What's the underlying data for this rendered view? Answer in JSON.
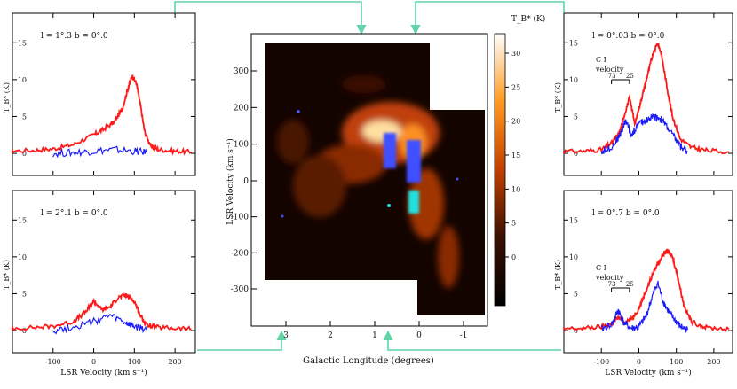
{
  "central_map": {
    "xlabel": "Galactic Longitude (degrees)",
    "ylabel": "LSR Velocity (km s⁻¹)",
    "colorbar_label": "T_B* (K)",
    "x_ticks": [
      "3",
      "2",
      "1",
      "0",
      "-1"
    ],
    "y_ticks": [
      "300",
      "200",
      "100",
      "0",
      "-100",
      "-200",
      "-300"
    ],
    "cbar_ticks": [
      "30",
      "25",
      "20",
      "15",
      "10",
      "5",
      "0"
    ]
  },
  "chart_data": [
    {
      "type": "line",
      "panel": "top-left",
      "title": "l = 1°.3  b = 0°.0",
      "xlabel": "",
      "ylabel": "T_B* (K)",
      "xlim": [
        -200,
        250
      ],
      "ylim": [
        -3,
        19
      ],
      "x_ticks": [
        "-100",
        "0",
        "100",
        "200"
      ],
      "y_ticks": [
        "0",
        "5",
        "10",
        "15"
      ],
      "series": [
        {
          "color": "#ff1a1a",
          "x": [
            -230,
            -150,
            -100,
            -50,
            0,
            25,
            50,
            70,
            85,
            95,
            105,
            115,
            125,
            140,
            160,
            200,
            240
          ],
          "y": [
            0.3,
            0.4,
            0.6,
            1.2,
            2.5,
            3.3,
            4.2,
            6.0,
            9.0,
            10.5,
            9.5,
            6.5,
            3.0,
            1.0,
            0.5,
            0.3,
            0.2
          ]
        },
        {
          "color": "#1a1aff",
          "x": [
            -100,
            -50,
            0,
            50,
            100,
            130
          ],
          "y": [
            0.0,
            0.1,
            0.3,
            0.5,
            0.3,
            0.1
          ]
        }
      ]
    },
    {
      "type": "line",
      "panel": "bottom-left",
      "title": "l = 2°.1   b = 0°.0",
      "xlabel": "LSR Velocity (km s⁻¹)",
      "ylabel": "T_B* (K)",
      "xlim": [
        -200,
        250
      ],
      "ylim": [
        -3,
        19
      ],
      "x_ticks": [
        "-100",
        "0",
        "100",
        "200"
      ],
      "y_ticks": [
        "0",
        "5",
        "10",
        "15"
      ],
      "series": [
        {
          "color": "#ff1a1a",
          "x": [
            -230,
            -150,
            -100,
            -50,
            -20,
            0,
            20,
            40,
            60,
            80,
            100,
            115,
            130,
            160,
            200,
            240
          ],
          "y": [
            0.3,
            0.4,
            0.6,
            1.2,
            2.5,
            4.0,
            2.8,
            3.2,
            4.5,
            4.8,
            4.0,
            2.0,
            0.8,
            0.4,
            0.3,
            0.2
          ]
        },
        {
          "color": "#1a1aff",
          "x": [
            -100,
            -50,
            0,
            40,
            80,
            100,
            130
          ],
          "y": [
            0.0,
            0.5,
            1.2,
            2.0,
            1.0,
            0.5,
            0.1
          ]
        }
      ]
    },
    {
      "type": "line",
      "panel": "top-right",
      "title": "l = 0°.03  b = 0°.0",
      "xlabel": "",
      "ylabel": "T_B* (K)",
      "xlim": [
        -200,
        250
      ],
      "ylim": [
        -3,
        19
      ],
      "x_ticks": [
        "-100",
        "0",
        "100",
        "200"
      ],
      "y_ticks": [
        "0",
        "5",
        "10",
        "15"
      ],
      "annotation": "C I velocity",
      "annotation_marks": [
        "73",
        "25"
      ],
      "series": [
        {
          "color": "#ff1a1a",
          "x": [
            -230,
            -150,
            -100,
            -70,
            -50,
            -40,
            -25,
            -10,
            0,
            10,
            20,
            35,
            50,
            60,
            75,
            90,
            110,
            140,
            180,
            240
          ],
          "y": [
            0.2,
            0.3,
            0.5,
            1.5,
            3.0,
            5.0,
            7.5,
            4.0,
            6.0,
            8.0,
            10.0,
            13.0,
            15.0,
            13.5,
            9.0,
            5.0,
            2.0,
            0.8,
            0.4,
            0.2
          ]
        },
        {
          "color": "#1a1aff",
          "x": [
            -100,
            -70,
            -50,
            -35,
            -20,
            0,
            20,
            40,
            55,
            70,
            90,
            110,
            130
          ],
          "y": [
            0.2,
            1.0,
            2.5,
            4.5,
            2.5,
            4.0,
            4.5,
            5.0,
            4.8,
            4.0,
            2.5,
            1.0,
            0.2
          ]
        }
      ]
    },
    {
      "type": "line",
      "panel": "bottom-right",
      "title": "l = 0°.7   b = 0°.0",
      "xlabel": "LSR Velocity (km s⁻¹)",
      "ylabel": "T_B* (K)",
      "xlim": [
        -200,
        250
      ],
      "ylim": [
        -3,
        19
      ],
      "x_ticks": [
        "-100",
        "0",
        "100",
        "200"
      ],
      "y_ticks": [
        "0",
        "5",
        "10",
        "15"
      ],
      "annotation": "C I velocity",
      "annotation_marks": [
        "73",
        "25"
      ],
      "series": [
        {
          "color": "#ff1a1a",
          "x": [
            -230,
            -150,
            -100,
            -70,
            -55,
            -40,
            -20,
            0,
            20,
            40,
            60,
            75,
            90,
            105,
            120,
            140,
            180,
            240
          ],
          "y": [
            0.2,
            0.3,
            0.5,
            1.0,
            1.8,
            1.2,
            1.5,
            3.0,
            5.5,
            8.0,
            10.0,
            10.8,
            10.0,
            7.0,
            3.5,
            1.2,
            0.4,
            0.2
          ]
        },
        {
          "color": "#1a1aff",
          "x": [
            -100,
            -70,
            -55,
            -40,
            -20,
            0,
            20,
            35,
            50,
            65,
            80,
            95,
            110,
            130
          ],
          "y": [
            0.1,
            1.0,
            2.8,
            1.0,
            0.3,
            0.5,
            2.0,
            4.5,
            6.5,
            4.0,
            2.5,
            1.5,
            0.6,
            0.1
          ]
        }
      ]
    }
  ]
}
